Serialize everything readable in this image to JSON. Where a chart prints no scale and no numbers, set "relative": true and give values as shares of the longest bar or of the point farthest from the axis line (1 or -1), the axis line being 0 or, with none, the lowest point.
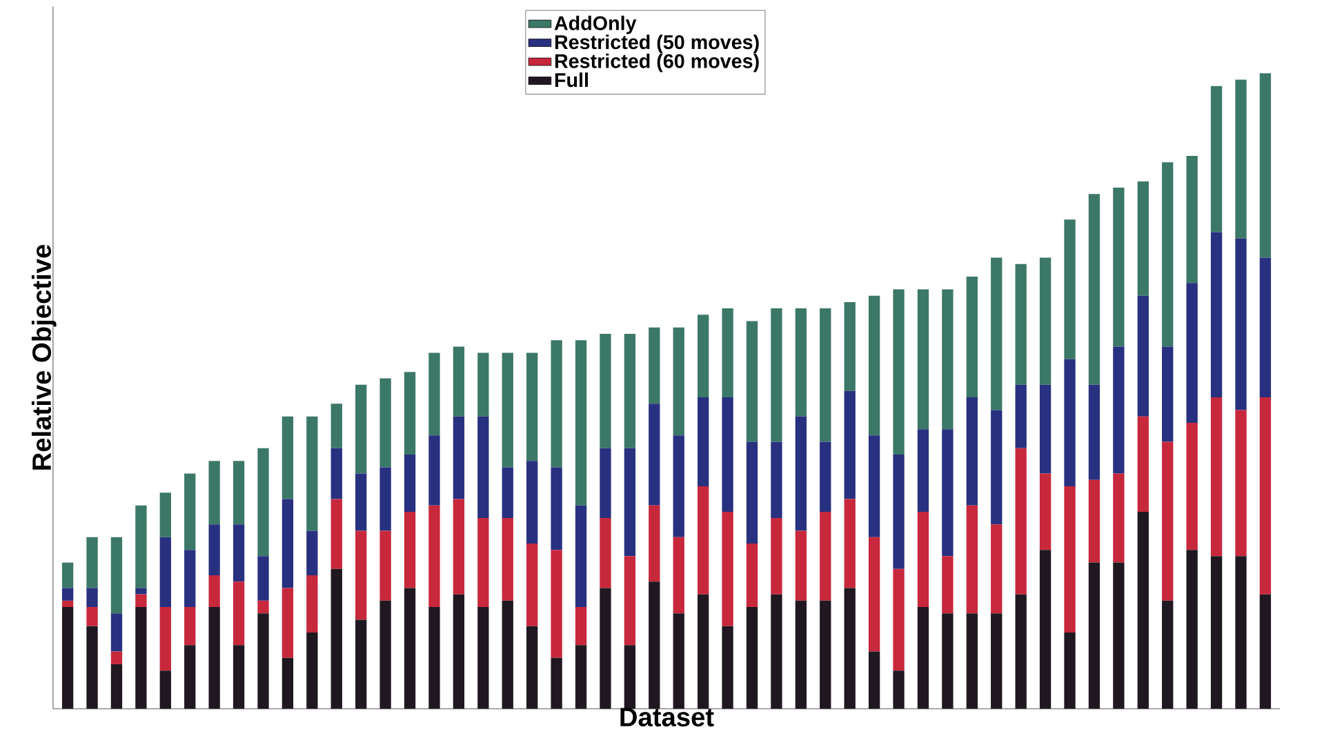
{
  "chart_data": {
    "type": "bar",
    "stacked": true,
    "relative": true,
    "xlabel": "Dataset",
    "ylabel": "Relative Objective",
    "legend": "top",
    "categories": [
      null,
      null,
      null,
      null,
      null,
      null,
      null,
      null,
      null,
      null,
      null,
      null,
      null,
      null,
      null,
      null,
      null,
      null,
      null,
      null,
      null,
      null,
      null,
      null,
      null,
      null,
      null,
      null,
      null,
      null,
      null,
      null,
      null,
      null,
      null,
      null,
      null,
      null,
      null,
      null,
      null,
      null,
      null,
      null,
      null,
      null,
      null,
      null,
      null,
      null
    ],
    "series": [
      {
        "name": "Full",
        "color": "#201820",
        "values": [
          0.16,
          0.13,
          0.07,
          0.16,
          0.06,
          0.1,
          0.16,
          0.1,
          0.15,
          0.08,
          0.12,
          0.22,
          0.14,
          0.17,
          0.19,
          0.16,
          0.18,
          0.16,
          0.17,
          0.13,
          0.08,
          0.1,
          0.19,
          0.1,
          0.2,
          0.15,
          0.18,
          0.13,
          0.16,
          0.18,
          0.17,
          0.17,
          0.19,
          0.09,
          0.06,
          0.16,
          0.15,
          0.15,
          0.15,
          0.18,
          0.25,
          0.12,
          0.23,
          0.23,
          0.31,
          0.17,
          0.25,
          0.24,
          0.24,
          0.18
        ]
      },
      {
        "name": "Restricted (60 moves)",
        "color": "#c8283c",
        "values": [
          0.01,
          0.03,
          0.02,
          0.02,
          0.1,
          0.06,
          0.05,
          0.1,
          0.02,
          0.11,
          0.09,
          0.11,
          0.14,
          0.11,
          0.12,
          0.16,
          0.15,
          0.14,
          0.13,
          0.13,
          0.17,
          0.06,
          0.11,
          0.14,
          0.12,
          0.12,
          0.17,
          0.18,
          0.1,
          0.12,
          0.11,
          0.14,
          0.14,
          0.18,
          0.16,
          0.15,
          0.09,
          0.17,
          0.14,
          0.23,
          0.12,
          0.23,
          0.13,
          0.14,
          0.15,
          0.25,
          0.2,
          0.25,
          0.23,
          0.31
        ]
      },
      {
        "name": "Restricted (50 moves)",
        "color": "#283080",
        "values": [
          0.02,
          0.03,
          0.06,
          0.01,
          0.11,
          0.09,
          0.08,
          0.09,
          0.07,
          0.14,
          0.07,
          0.08,
          0.09,
          0.1,
          0.09,
          0.11,
          0.13,
          0.16,
          0.08,
          0.13,
          0.13,
          0.16,
          0.11,
          0.17,
          0.16,
          0.16,
          0.14,
          0.18,
          0.16,
          0.12,
          0.18,
          0.11,
          0.17,
          0.16,
          0.18,
          0.13,
          0.2,
          0.17,
          0.18,
          0.1,
          0.14,
          0.2,
          0.15,
          0.2,
          0.19,
          0.15,
          0.22,
          0.26,
          0.27,
          0.22
        ]
      },
      {
        "name": "AddOnly",
        "color": "#3c7868",
        "values": [
          0.04,
          0.08,
          0.12,
          0.13,
          0.07,
          0.12,
          0.1,
          0.1,
          0.17,
          0.13,
          0.18,
          0.07,
          0.14,
          0.14,
          0.13,
          0.13,
          0.11,
          0.1,
          0.18,
          0.17,
          0.2,
          0.26,
          0.18,
          0.18,
          0.12,
          0.17,
          0.13,
          0.14,
          0.19,
          0.21,
          0.17,
          0.21,
          0.14,
          0.22,
          0.26,
          0.22,
          0.22,
          0.19,
          0.24,
          0.19,
          0.2,
          0.22,
          0.3,
          0.25,
          0.18,
          0.29,
          0.2,
          0.23,
          0.25,
          0.29
        ]
      }
    ]
  }
}
